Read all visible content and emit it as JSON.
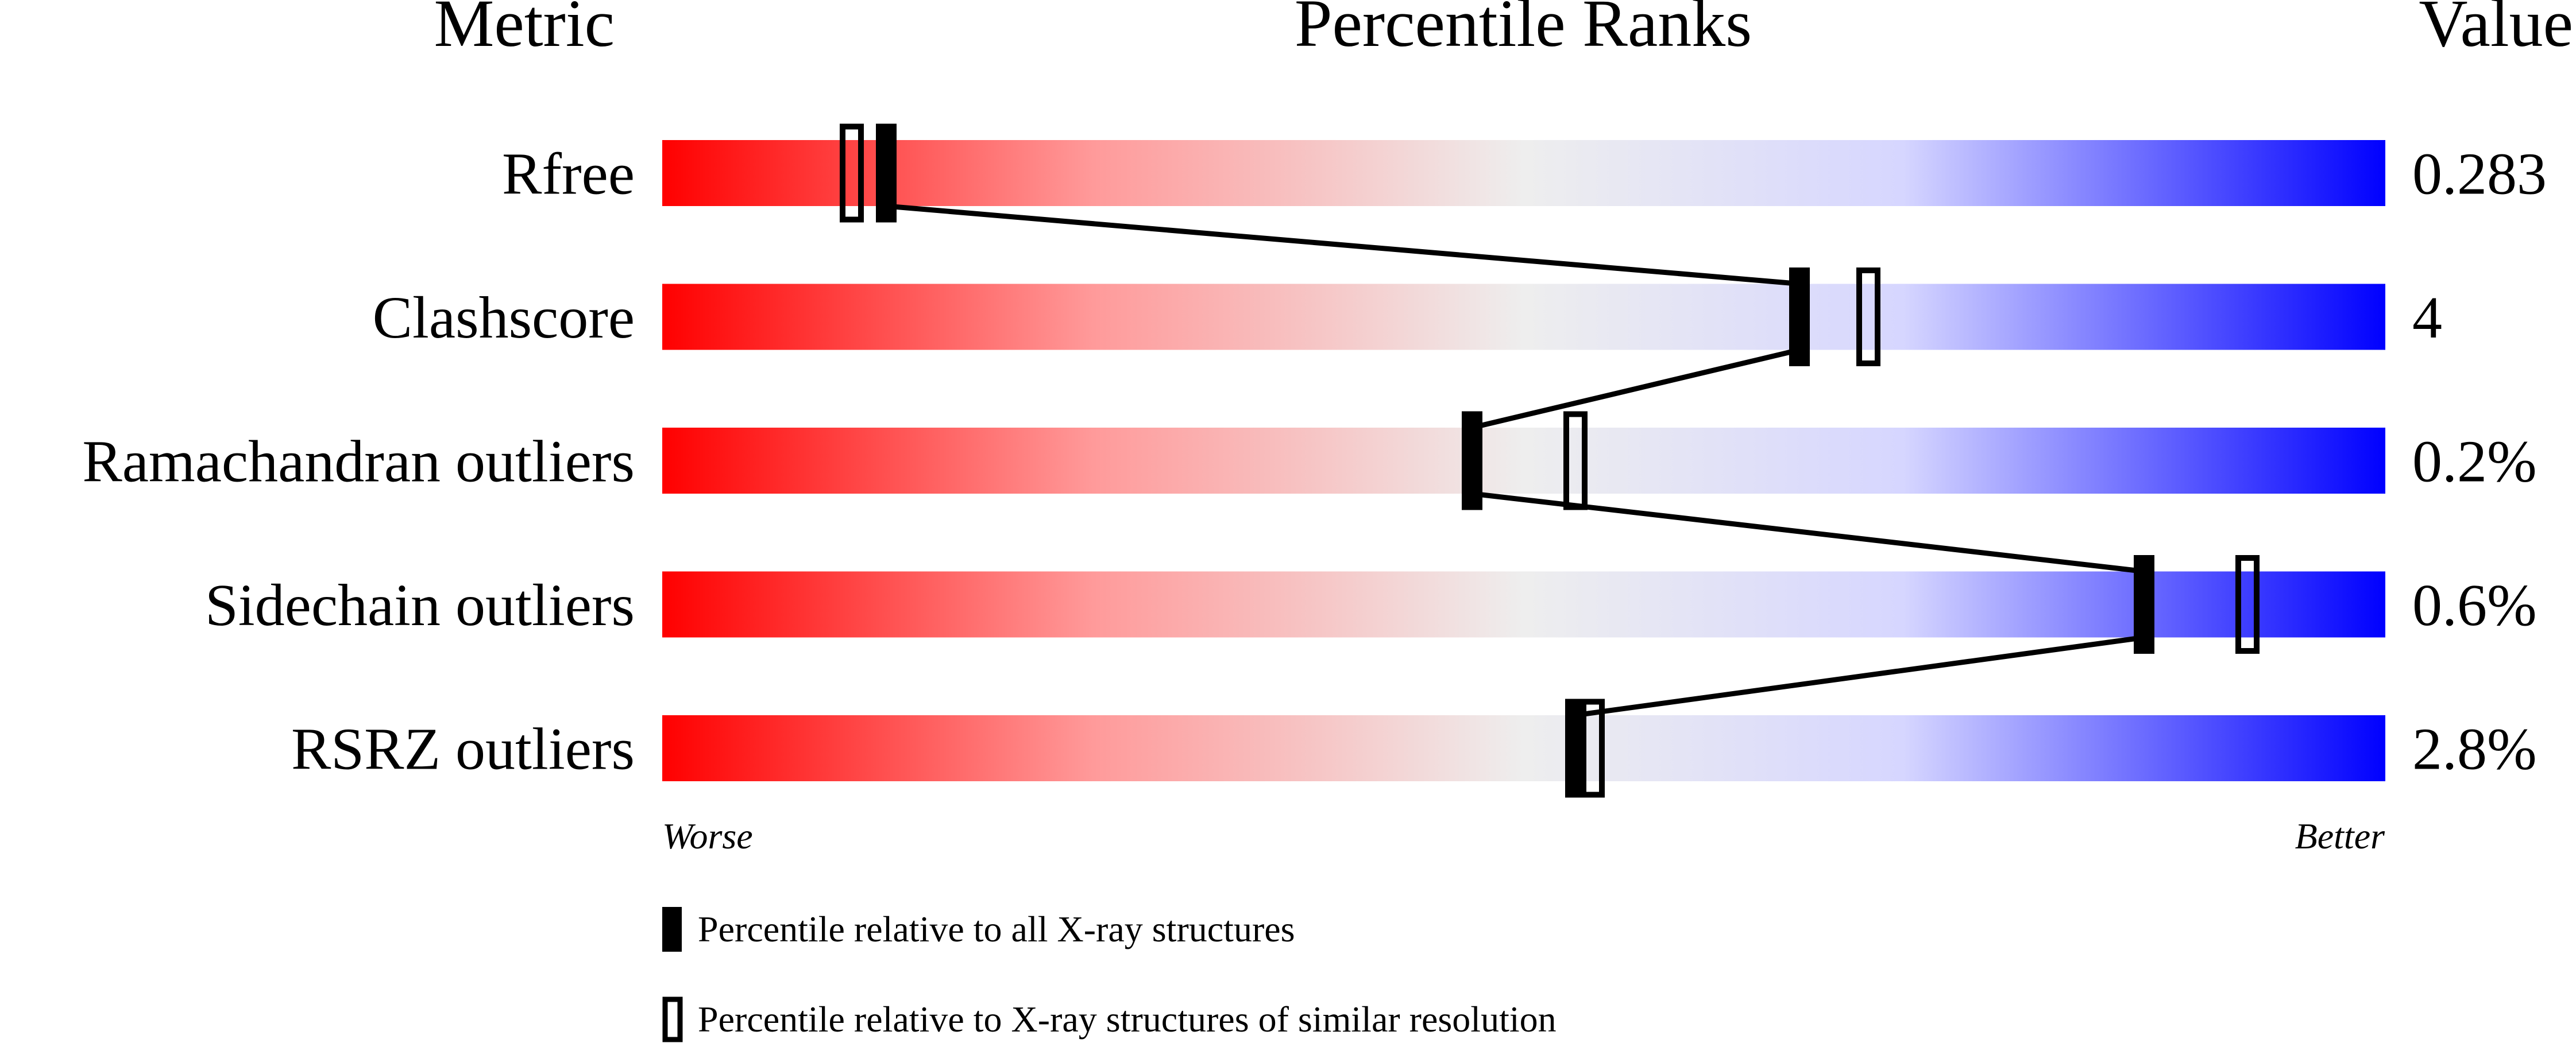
{
  "chart_data": {
    "type": "percentile-slider",
    "headers": {
      "metric": "Metric",
      "ranks": "Percentile Ranks",
      "value": "Value"
    },
    "xlim": [
      0,
      100
    ],
    "metrics": [
      {
        "name": "Rfree",
        "value": "0.283",
        "percentile_all": 13,
        "percentile_similar": 11
      },
      {
        "name": "Clashscore",
        "value": "4",
        "percentile_all": 66,
        "percentile_similar": 70
      },
      {
        "name": "Ramachandran outliers",
        "value": "0.2%",
        "percentile_all": 47,
        "percentile_similar": 53
      },
      {
        "name": "Sidechain outliers",
        "value": "0.6%",
        "percentile_all": 86,
        "percentile_similar": 92
      },
      {
        "name": "RSRZ outliers",
        "value": "2.8%",
        "percentile_all": 53,
        "percentile_similar": 54
      }
    ],
    "axis_ends": {
      "left": "Worse",
      "right": "Better"
    },
    "legend": {
      "all": "Percentile relative to all X-ray structures",
      "similar": "Percentile relative to X-ray structures of similar resolution"
    },
    "colors": {
      "worse": "#ff0000",
      "middle": "#eeeeee",
      "better": "#0000ff",
      "marker": "#000000"
    }
  }
}
